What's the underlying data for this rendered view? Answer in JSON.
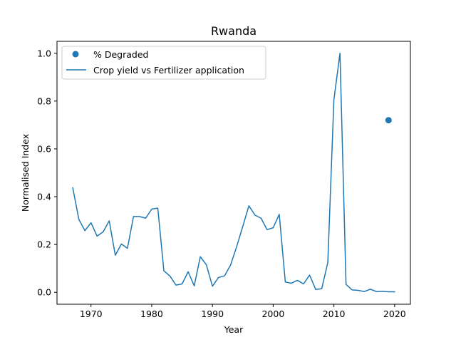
{
  "chart_data": {
    "type": "line",
    "title": "Rwanda",
    "xlabel": "Year",
    "ylabel": "Normalised Index",
    "xlim": [
      1964.4,
      2022.6
    ],
    "ylim": [
      -0.05,
      1.05
    ],
    "x_ticks": [
      1970,
      1980,
      1990,
      2000,
      2010,
      2020
    ],
    "y_ticks": [
      0.0,
      0.2,
      0.4,
      0.6,
      0.8,
      1.0
    ],
    "x_tick_labels": [
      "1970",
      "1980",
      "1990",
      "2000",
      "2010",
      "2020"
    ],
    "y_tick_labels": [
      "0.0",
      "0.2",
      "0.4",
      "0.6",
      "0.8",
      "1.0"
    ],
    "grid": false,
    "legend_position": "upper-left",
    "color": "#1f77b4",
    "series": [
      {
        "name": "% Degraded",
        "type": "scatter",
        "x": [
          2019
        ],
        "y": [
          0.72
        ]
      },
      {
        "name": "Crop yield vs Fertilizer application",
        "type": "line",
        "x": [
          1967,
          1968,
          1969,
          1970,
          1971,
          1972,
          1973,
          1974,
          1975,
          1976,
          1977,
          1978,
          1979,
          1980,
          1981,
          1982,
          1983,
          1984,
          1985,
          1986,
          1987,
          1988,
          1989,
          1990,
          1991,
          1992,
          1993,
          1994,
          1995,
          1996,
          1997,
          1998,
          1999,
          2000,
          2001,
          2002,
          2003,
          2004,
          2005,
          2006,
          2007,
          2008,
          2009,
          2010,
          2011,
          2012,
          2013,
          2014,
          2015,
          2016,
          2017,
          2018,
          2019,
          2020
        ],
        "y": [
          0.437,
          0.305,
          0.258,
          0.291,
          0.235,
          0.253,
          0.299,
          0.155,
          0.202,
          0.184,
          0.317,
          0.317,
          0.31,
          0.348,
          0.352,
          0.09,
          0.068,
          0.03,
          0.035,
          0.086,
          0.027,
          0.149,
          0.115,
          0.025,
          0.062,
          0.069,
          0.115,
          0.192,
          0.276,
          0.362,
          0.323,
          0.31,
          0.262,
          0.27,
          0.326,
          0.043,
          0.038,
          0.05,
          0.035,
          0.072,
          0.012,
          0.015,
          0.125,
          0.805,
          1.0,
          0.033,
          0.01,
          0.008,
          0.003,
          0.013,
          0.003,
          0.004,
          0.002,
          0.002
        ]
      }
    ]
  }
}
